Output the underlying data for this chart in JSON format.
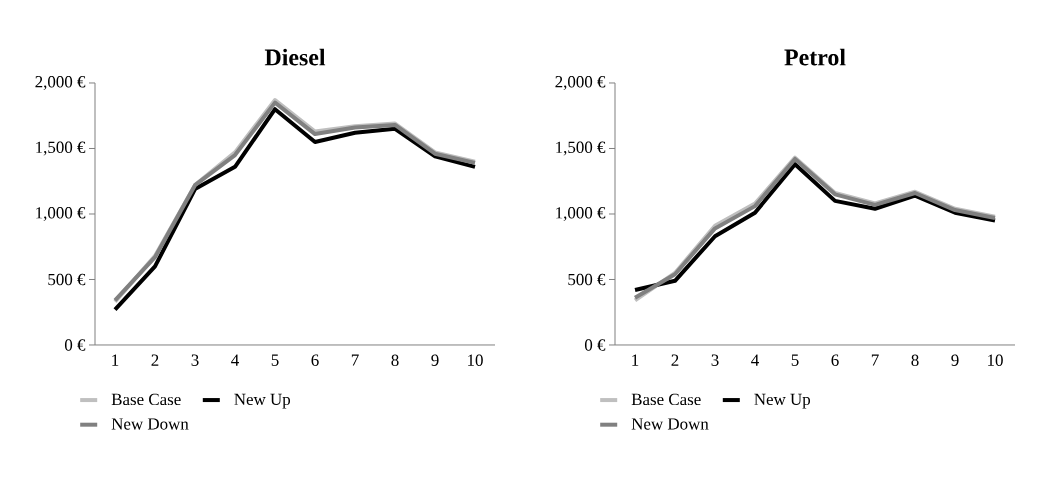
{
  "chart_data": [
    {
      "type": "line",
      "title": "Diesel",
      "categories": [
        "1",
        "2",
        "3",
        "4",
        "5",
        "6",
        "7",
        "8",
        "9",
        "10"
      ],
      "ylim": [
        0,
        2000
      ],
      "yticks": [
        {
          "value": 0,
          "label": "0 €"
        },
        {
          "value": 500,
          "label": "500 €"
        },
        {
          "value": 1000,
          "label": "1,000 €"
        },
        {
          "value": 1500,
          "label": "1,500 €"
        },
        {
          "value": 2000,
          "label": "2,000 €"
        }
      ],
      "legend": "bottom",
      "grid": false,
      "marker": "none",
      "line_style": "solid",
      "series": [
        {
          "name": "Base Case",
          "color": "#bfbfbf",
          "values": [
            330,
            680,
            1220,
            1470,
            1870,
            1630,
            1670,
            1690,
            1470,
            1400
          ]
        },
        {
          "name": "New Up",
          "color": "#000000",
          "values": [
            270,
            600,
            1190,
            1360,
            1800,
            1550,
            1620,
            1650,
            1440,
            1360
          ]
        },
        {
          "name": "New Down",
          "color": "#808080",
          "values": [
            340,
            670,
            1220,
            1450,
            1850,
            1610,
            1660,
            1680,
            1460,
            1390
          ]
        }
      ]
    },
    {
      "type": "line",
      "title": "Petrol",
      "categories": [
        "1",
        "2",
        "3",
        "4",
        "5",
        "6",
        "7",
        "8",
        "9",
        "10"
      ],
      "ylim": [
        0,
        2000
      ],
      "yticks": [
        {
          "value": 0,
          "label": "0 €"
        },
        {
          "value": 500,
          "label": "500 €"
        },
        {
          "value": 1000,
          "label": "1,000 €"
        },
        {
          "value": 1500,
          "label": "1,500 €"
        },
        {
          "value": 2000,
          "label": "2,000 €"
        }
      ],
      "legend": "bottom",
      "grid": false,
      "marker": "none",
      "line_style": "solid",
      "series": [
        {
          "name": "Base Case",
          "color": "#bfbfbf",
          "values": [
            340,
            550,
            910,
            1080,
            1430,
            1160,
            1080,
            1170,
            1040,
            980
          ]
        },
        {
          "name": "New Up",
          "color": "#000000",
          "values": [
            420,
            490,
            830,
            1010,
            1380,
            1100,
            1040,
            1140,
            1010,
            950
          ]
        },
        {
          "name": "New Down",
          "color": "#808080",
          "values": [
            360,
            540,
            890,
            1060,
            1420,
            1150,
            1070,
            1160,
            1030,
            970
          ]
        }
      ]
    }
  ]
}
